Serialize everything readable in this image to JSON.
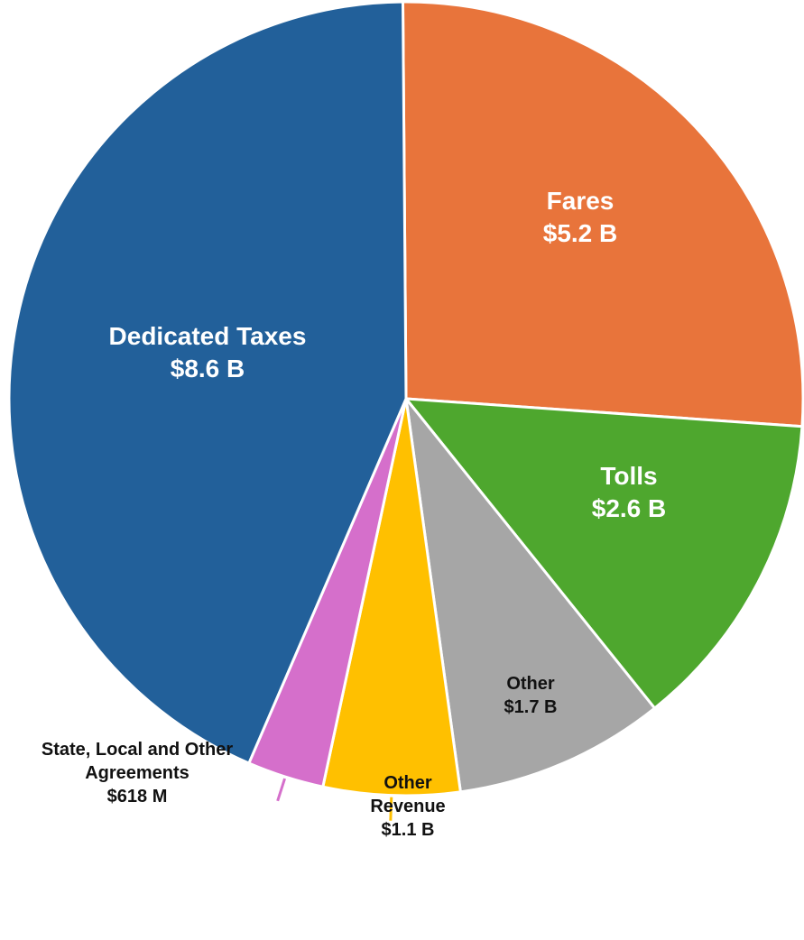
{
  "chart_data": {
    "type": "pie",
    "categories": [
      "Fares",
      "Tolls",
      "Other",
      "Other Revenue",
      "State, Local and Other Agreements",
      "Dedicated Taxes"
    ],
    "values": [
      5.2,
      2.6,
      1.7,
      1.1,
      0.618,
      8.6
    ],
    "value_labels": [
      "$5.2 B",
      "$2.6 B",
      "$1.7 B",
      "$1.1 B",
      "$618 M",
      "$8.6 B"
    ],
    "colors": [
      "#E8743B",
      "#4EA72E",
      "#A6A6A6",
      "#FFC000",
      "#D56FCB",
      "#22609A"
    ]
  }
}
